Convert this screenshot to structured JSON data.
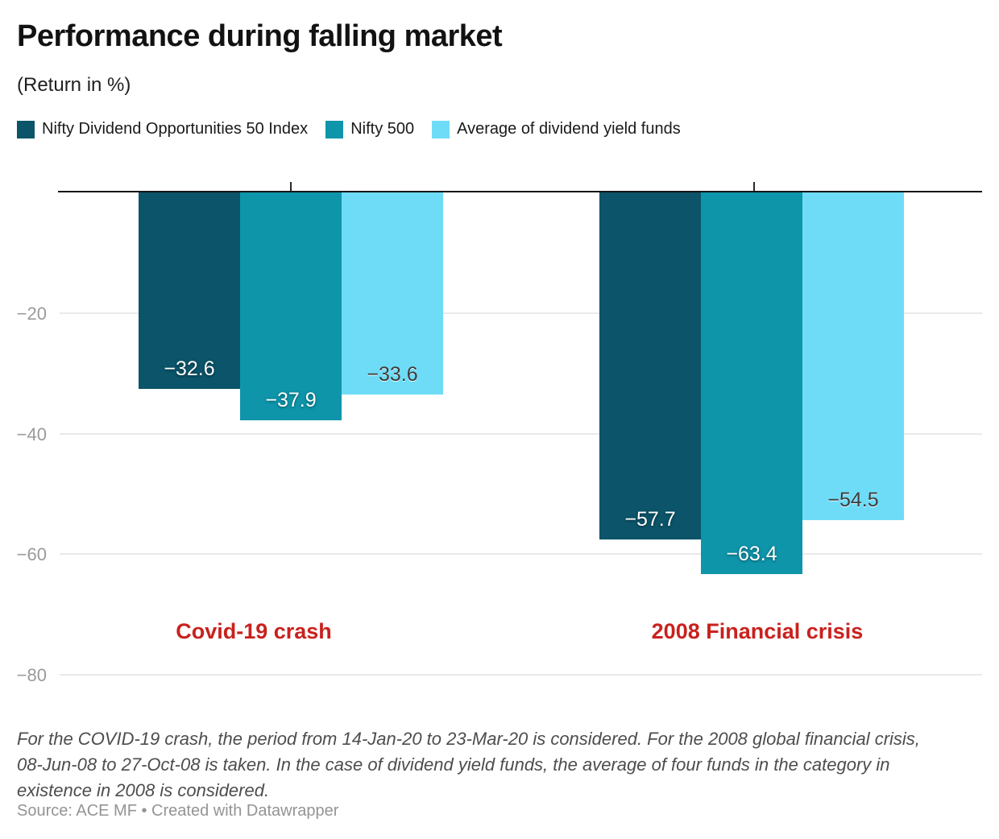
{
  "header": {
    "title": "Performance during falling market",
    "subtitle": "(Return in %)"
  },
  "chart_data": {
    "type": "bar",
    "categories": [
      "Covid-19 crash",
      "2008 Financial crisis"
    ],
    "series": [
      {
        "name": "Nifty Dividend Opportunities 50 Index",
        "color": "#0b5469",
        "values": [
          -32.6,
          -57.7
        ],
        "labels": [
          "−32.6",
          "−57.7"
        ]
      },
      {
        "name": "Nifty 500",
        "color": "#0e95aa",
        "values": [
          -37.9,
          -63.4
        ],
        "labels": [
          "−37.9",
          "−63.4"
        ]
      },
      {
        "name": "Average of dividend yield funds",
        "color": "#6fdcf7",
        "values": [
          -33.6,
          -54.5
        ],
        "labels": [
          "−33.6",
          "−54.5"
        ]
      }
    ],
    "title": "Performance during falling market",
    "ylabel": "(Return in %)",
    "ylim": [
      -84,
      0
    ],
    "grid": "horizontal",
    "legend_position": "top",
    "category_label_color": "#c9211e",
    "yticks": [
      {
        "value": -20,
        "label": "−20"
      },
      {
        "value": -40,
        "label": "−40"
      },
      {
        "value": -60,
        "label": "−60"
      },
      {
        "value": -80,
        "label": "−80"
      }
    ]
  },
  "footnote": {
    "lines": [
      "For the COVID-19 crash, the period from 14-Jan-20 to 23-Mar-20 is considered. For the 2008 global financial crisis,",
      "08-Jun-08 to 27-Oct-08 is taken. In the case of dividend yield funds, the average of four funds in the category in",
      "existence in 2008 is considered."
    ]
  },
  "source": "Source: ACE MF • Created with Datawrapper"
}
